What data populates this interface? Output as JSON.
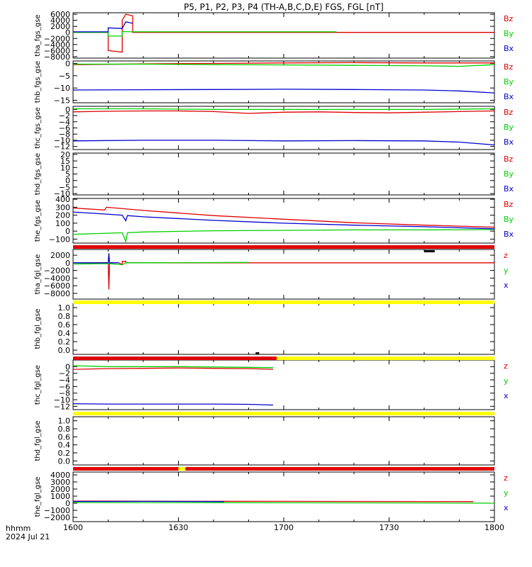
{
  "title": "P5, P1, P2, P3, P4 (TH-A,B,C,D,E) FGS, FGL [nT]",
  "footer": {
    "units_label": "hhmm",
    "date_label": "2024 Jul 21"
  },
  "x_axis": {
    "range": [
      0,
      120
    ],
    "ticks": [
      0,
      30,
      60,
      90,
      120
    ],
    "tick_labels": [
      "1600",
      "1630",
      "1700",
      "1730",
      "1800"
    ]
  },
  "colors": {
    "red": "#e00000",
    "green": "#00d000",
    "blue": "#0000d0",
    "yellow": "#ffff00",
    "black": "#000000"
  },
  "chart_data": [
    {
      "type": "line",
      "ylabel": "tha_fgs_gse",
      "ylim": [
        -8500,
        6500
      ],
      "yticks": [
        -8000,
        -6000,
        -4000,
        -2000,
        0,
        2000,
        4000,
        6000
      ],
      "ytick_labels": [
        "−8000",
        "−6000",
        "−4000",
        "−2000",
        "0",
        "2000",
        "4000",
        "6000"
      ],
      "legend": [
        "Bz",
        "By",
        "Bx"
      ],
      "series": [
        {
          "name": "Bz",
          "color": "red",
          "x": [
            0,
            10,
            10,
            14,
            14,
            15,
            17,
            17,
            120
          ],
          "y": [
            0,
            0,
            -6000,
            -6500,
            4000,
            6000,
            5500,
            0,
            0
          ]
        },
        {
          "name": "By",
          "color": "green",
          "x": [
            0,
            10,
            10,
            14,
            14,
            17,
            75
          ],
          "y": [
            0,
            0,
            -1200,
            -1200,
            300,
            200,
            200
          ]
        },
        {
          "name": "Bx",
          "color": "blue",
          "x": [
            0,
            10,
            10,
            14,
            15,
            17
          ],
          "y": [
            200,
            200,
            1500,
            1300,
            3500,
            3000
          ]
        }
      ]
    },
    {
      "type": "line",
      "ylabel": "thb_fgs_gse",
      "ylim": [
        -16,
        1
      ],
      "yticks": [
        -15,
        -10,
        -5,
        0
      ],
      "ytick_labels": [
        "−15",
        "−10",
        "−5",
        "0"
      ],
      "legend": [
        "Bz",
        "By",
        "Bx"
      ],
      "series": [
        {
          "name": "Bz",
          "color": "red",
          "x": [
            0,
            20,
            40,
            60,
            80,
            100,
            120
          ],
          "y": [
            -0.5,
            -0.2,
            0,
            0.2,
            0.3,
            0.2,
            0.2
          ]
        },
        {
          "name": "By",
          "color": "green",
          "x": [
            0,
            20,
            40,
            60,
            80,
            100,
            110,
            120
          ],
          "y": [
            -0.3,
            -0.3,
            -0.5,
            -0.6,
            -0.8,
            -1.0,
            -1.2,
            -0.5
          ]
        },
        {
          "name": "Bx",
          "color": "blue",
          "x": [
            0,
            20,
            40,
            60,
            80,
            100,
            110,
            120
          ],
          "y": [
            -10.8,
            -10.7,
            -10.6,
            -10.5,
            -10.6,
            -10.8,
            -11.2,
            -12.0
          ]
        }
      ]
    },
    {
      "type": "line",
      "ylabel": "thc_fgs_gse",
      "ylim": [
        -13,
        1
      ],
      "yticks": [
        -12,
        -10,
        -8,
        -6,
        -4,
        -2,
        0
      ],
      "ytick_labels": [
        "−12",
        "−10",
        "−8",
        "−6",
        "−4",
        "−2",
        "0"
      ],
      "legend": [
        "Bz",
        "By",
        "Bx"
      ],
      "series": [
        {
          "name": "Bz",
          "color": "red",
          "x": [
            0,
            10,
            20,
            30,
            40,
            50,
            60,
            70,
            80,
            90,
            100,
            110,
            120
          ],
          "y": [
            -0.8,
            -0.6,
            -0.5,
            -0.5,
            -0.7,
            -1.3,
            -0.9,
            -0.8,
            -1.0,
            -1.1,
            -0.9,
            -0.7,
            -0.5
          ]
        },
        {
          "name": "By",
          "color": "green",
          "x": [
            0,
            20,
            40,
            60,
            80,
            100,
            120
          ],
          "y": [
            0.2,
            0.2,
            0.0,
            0.0,
            0.0,
            0.0,
            0.2
          ]
        },
        {
          "name": "Bx",
          "color": "blue",
          "x": [
            0,
            20,
            40,
            60,
            80,
            100,
            110,
            120
          ],
          "y": [
            -10.2,
            -10.0,
            -10.0,
            -10.2,
            -10.1,
            -10.2,
            -10.6,
            -11.5
          ]
        }
      ]
    },
    {
      "type": "line",
      "ylabel": "thd_fgs_gse",
      "ylim": [
        -11,
        21
      ],
      "yticks": [
        -10,
        -5,
        0,
        5,
        10,
        15,
        20
      ],
      "ytick_labels": [
        "−10",
        "−5",
        "0",
        "5",
        "10",
        "15",
        "20"
      ],
      "legend": [
        "Bz",
        "By",
        "Bx"
      ],
      "series": []
    },
    {
      "type": "line",
      "ylabel": "the_fgs_gse",
      "ylim": [
        -150,
        410
      ],
      "yticks": [
        -100,
        0,
        100,
        200,
        300,
        400
      ],
      "ytick_labels": [
        "−100",
        "0",
        "100",
        "200",
        "300",
        "400"
      ],
      "legend": [
        "Bz",
        "By",
        "Bx"
      ],
      "series": [
        {
          "name": "Bz",
          "color": "red",
          "x": [
            0,
            9,
            9.5,
            20,
            40,
            60,
            80,
            100,
            120
          ],
          "y": [
            290,
            265,
            300,
            260,
            195,
            150,
            105,
            75,
            50
          ]
        },
        {
          "name": "By",
          "color": "green",
          "x": [
            0,
            14,
            15,
            15.5,
            20,
            40,
            60,
            80,
            100,
            120
          ],
          "y": [
            -40,
            -20,
            -130,
            -20,
            -10,
            5,
            10,
            15,
            15,
            20
          ]
        },
        {
          "name": "Bx",
          "color": "blue",
          "x": [
            0,
            14,
            15,
            15.5,
            20,
            40,
            60,
            80,
            100,
            120
          ],
          "y": [
            240,
            200,
            130,
            195,
            180,
            135,
            100,
            75,
            55,
            30
          ]
        }
      ]
    },
    {
      "type": "line",
      "ylabel": "tha_fgl_gse",
      "ylim": [
        -9500,
        3500
      ],
      "yticks": [
        -8000,
        -6000,
        -4000,
        -2000,
        0,
        2000
      ],
      "ytick_labels": [
        "−8000",
        "−6000",
        "−4000",
        "−2000",
        "0",
        "2000"
      ],
      "legend": [
        "z",
        "y",
        "x"
      ],
      "series": [
        {
          "name": "z",
          "color": "red",
          "x": [
            0,
            10,
            10.2,
            10.4,
            13,
            14,
            14,
            15,
            15,
            120
          ],
          "y": [
            0,
            0,
            -7000,
            0,
            0,
            -500,
            400,
            400,
            0,
            0
          ]
        },
        {
          "name": "y",
          "color": "green",
          "x": [
            0,
            10,
            14,
            15,
            20,
            50
          ],
          "y": [
            -300,
            -200,
            -500,
            0,
            0,
            100
          ]
        },
        {
          "name": "x",
          "color": "blue",
          "x": [
            0,
            10,
            10.2,
            10.4,
            13
          ],
          "y": [
            0,
            0,
            2500,
            0,
            0
          ]
        }
      ]
    },
    {
      "type": "line",
      "ylabel": "thb_fgl_gse",
      "ylim": [
        -0.1,
        1.1
      ],
      "yticks": [
        0,
        0.2,
        0.4,
        0.6,
        0.8,
        1.0
      ],
      "ytick_labels": [
        "0.0",
        "0.2",
        "0.4",
        "0.6",
        "0.8",
        "1.0"
      ],
      "legend": [],
      "series": []
    },
    {
      "type": "line",
      "ylabel": "thc_fgl_gse",
      "ylim": [
        -13,
        2
      ],
      "yticks": [
        -12,
        -10,
        -8,
        -6,
        -4,
        -2,
        0
      ],
      "ytick_labels": [
        "−12",
        "−10",
        "−8",
        "−6",
        "−4",
        "−2",
        "0"
      ],
      "legend": [
        "z",
        "y",
        "x"
      ],
      "series": [
        {
          "name": "z",
          "color": "red",
          "x": [
            0,
            10,
            20,
            30,
            40,
            50,
            57
          ],
          "y": [
            -0.8,
            -0.6,
            -0.5,
            -0.4,
            -0.5,
            -0.6,
            -0.8
          ]
        },
        {
          "name": "y",
          "color": "green",
          "x": [
            0,
            10,
            20,
            30,
            40,
            50,
            57
          ],
          "y": [
            0.3,
            0.0,
            0.0,
            0.0,
            -0.1,
            -0.2,
            -0.3
          ]
        },
        {
          "name": "x",
          "color": "blue",
          "x": [
            0,
            10,
            20,
            30,
            40,
            50,
            57
          ],
          "y": [
            -11.2,
            -11.3,
            -11.3,
            -11.3,
            -11.3,
            -11.4,
            -11.6
          ]
        }
      ]
    },
    {
      "type": "line",
      "ylabel": "thd_fgl_gse",
      "ylim": [
        -0.1,
        1.1
      ],
      "yticks": [
        0,
        0.2,
        0.4,
        0.6,
        0.8,
        1.0
      ],
      "ytick_labels": [
        "0.0",
        "0.2",
        "0.4",
        "0.6",
        "0.8",
        "1.0"
      ],
      "legend": [],
      "series": []
    },
    {
      "type": "line",
      "ylabel": "the_fgl_gse",
      "ylim": [
        -2600,
        4400
      ],
      "yticks": [
        -2000,
        -1000,
        0,
        1000,
        2000,
        3000,
        4000
      ],
      "ytick_labels": [
        "−2000",
        "−1000",
        "0",
        "1000",
        "2000",
        "3000",
        "4000"
      ],
      "legend": [
        "z",
        "y",
        "x"
      ],
      "series": [
        {
          "name": "z",
          "color": "red",
          "x": [
            0,
            20,
            40,
            60,
            80,
            100,
            114
          ],
          "y": [
            300,
            280,
            270,
            260,
            250,
            240,
            230
          ]
        },
        {
          "name": "y",
          "color": "green",
          "x": [
            0,
            20,
            40,
            60,
            80,
            100,
            120
          ],
          "y": [
            100,
            90,
            80,
            60,
            50,
            40,
            0
          ]
        },
        {
          "name": "x",
          "color": "blue",
          "x": [
            0,
            10,
            20,
            30,
            40,
            43
          ],
          "y": [
            250,
            250,
            260,
            250,
            240,
            230
          ]
        }
      ]
    }
  ],
  "mode_bars": [
    {
      "after_panel": 4,
      "segments": [
        {
          "x0": 0,
          "x1": 120,
          "color": "red"
        },
        {
          "x0": 100,
          "x1": 103,
          "color": "black",
          "row": 1
        }
      ]
    },
    {
      "after_panel": 5,
      "segments": [
        {
          "x0": 0,
          "x1": 120,
          "color": "yellow"
        }
      ]
    },
    {
      "after_panel": 6,
      "segments": [
        {
          "x0": 0,
          "x1": 58,
          "color": "red"
        },
        {
          "x0": 58,
          "x1": 120,
          "color": "yellow"
        },
        {
          "x0": 52,
          "x1": 53,
          "color": "black",
          "row": -1
        }
      ]
    },
    {
      "after_panel": 7,
      "segments": [
        {
          "x0": 0,
          "x1": 120,
          "color": "yellow"
        }
      ]
    },
    {
      "after_panel": 8,
      "segments": [
        {
          "x0": 0,
          "x1": 30,
          "color": "red"
        },
        {
          "x0": 30,
          "x1": 32,
          "color": "yellow"
        },
        {
          "x0": 32,
          "x1": 120,
          "color": "red"
        }
      ]
    }
  ]
}
